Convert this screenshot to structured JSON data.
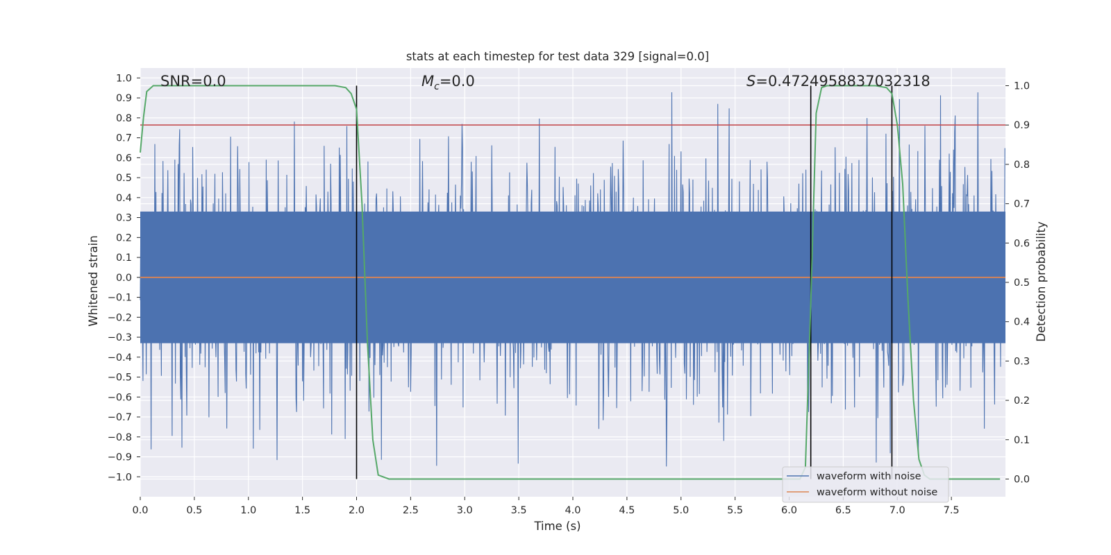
{
  "chart_data": {
    "type": "line",
    "title": "stats at each timestep for test data 329 [signal=0.0]",
    "xlabel": "Time (s)",
    "ylabel": "Whitened strain",
    "y2label": "Detection probability",
    "xlim": [
      0.0,
      8.0
    ],
    "ylim": [
      -1.1,
      1.05
    ],
    "y2lim": [
      -0.045,
      1.045
    ],
    "xticks": [
      "0.0",
      "0.5",
      "1.0",
      "1.5",
      "2.0",
      "2.5",
      "3.0",
      "3.5",
      "4.0",
      "4.5",
      "5.0",
      "5.5",
      "6.0",
      "6.5",
      "7.0",
      "7.5"
    ],
    "yticks": [
      "1.0",
      "0.9",
      "0.8",
      "0.7",
      "0.6",
      "0.5",
      "0.4",
      "0.3",
      "0.2",
      "0.1",
      "0.0",
      "−0.1",
      "−0.2",
      "−0.3",
      "−0.4",
      "−0.5",
      "−0.6",
      "−0.7",
      "−0.8",
      "−0.9",
      "−1.0"
    ],
    "y2ticks": [
      "1.0",
      "0.9",
      "0.8",
      "0.7",
      "0.6",
      "0.5",
      "0.4",
      "0.3",
      "0.2",
      "0.1",
      "0.0"
    ],
    "grid": true,
    "legend_position": "lower-right",
    "annotations": {
      "snr": "SNR=0.0",
      "mc_symbol": "M",
      "mc_sub": "c",
      "mc_value": "=0.0",
      "s_symbol": "S",
      "s_value": "=0.4724958837032318"
    },
    "series": [
      {
        "name": "waveform with noise",
        "color": "#4c72b0",
        "description_kind": "whitened noise, amplitude mostly within ±0.5 with spikes to ±1.0"
      },
      {
        "name": "waveform without noise",
        "color": "#dd8452",
        "values_constant": 0.0
      }
    ],
    "threshold": {
      "value_prob": 0.9,
      "color": "#c44e52"
    },
    "detection_probability": {
      "color": "#55a868",
      "x": [
        0.0,
        0.03,
        0.06,
        0.12,
        0.2,
        0.5,
        1.0,
        1.5,
        1.8,
        1.9,
        1.95,
        2.0,
        2.05,
        2.1,
        2.15,
        2.2,
        2.3,
        2.4,
        2.5,
        3.0,
        4.0,
        5.0,
        6.0,
        6.1,
        6.15,
        6.2,
        6.25,
        6.3,
        6.35,
        6.4,
        6.5,
        6.8,
        6.9,
        6.95,
        7.0,
        7.05,
        7.1,
        7.15,
        7.2,
        7.25,
        7.3,
        7.4,
        7.6,
        7.8,
        7.95
      ],
      "y": [
        0.83,
        0.92,
        0.985,
        1.0,
        1.0,
        1.0,
        1.0,
        1.0,
        1.0,
        0.995,
        0.98,
        0.94,
        0.7,
        0.35,
        0.1,
        0.01,
        0.0,
        0.0,
        0.0,
        0.0,
        0.0,
        0.0,
        0.0,
        0.0,
        0.03,
        0.45,
        0.93,
        0.995,
        1.0,
        1.0,
        1.0,
        1.0,
        0.995,
        0.98,
        0.9,
        0.75,
        0.45,
        0.2,
        0.05,
        0.01,
        0.0,
        0.0,
        0.0,
        0.0,
        0.0
      ]
    },
    "vertical_markers_s": [
      2.0,
      6.2,
      6.95
    ],
    "marker_color": "#000000"
  }
}
